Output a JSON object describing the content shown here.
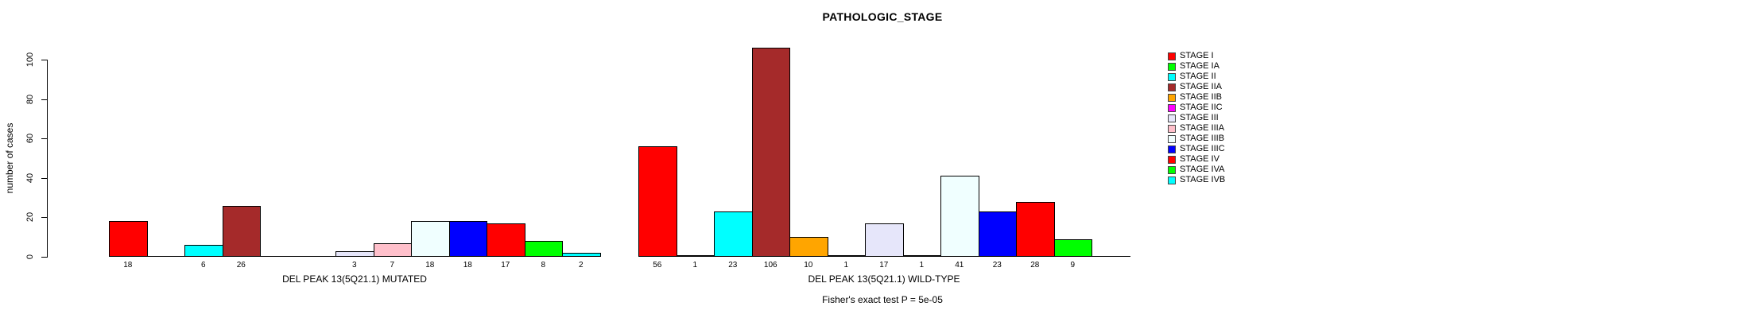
{
  "chart_data": {
    "type": "bar",
    "title": "PATHOLOGIC_STAGE",
    "ylabel": "number of cases",
    "xlabel": "",
    "ylim": [
      0,
      100
    ],
    "yticks": [
      0,
      20,
      40,
      60,
      80,
      100
    ],
    "grid": false,
    "legend_position": "right",
    "bar_border_color": "#000000",
    "categories": [
      "STAGE I",
      "STAGE IA",
      "STAGE II",
      "STAGE IIA",
      "STAGE IIB",
      "STAGE IIC",
      "STAGE III",
      "STAGE IIIA",
      "STAGE IIIB",
      "STAGE IIIC",
      "STAGE IV",
      "STAGE IVA",
      "STAGE IVB"
    ],
    "colors": [
      "#FF0000",
      "#00FF00",
      "#00FFFF",
      "#A52A2A",
      "#FFA500",
      "#FF00FF",
      "#E6E6FA",
      "#FFC0CB",
      "#F0FFFF",
      "#0000FF",
      "#FF0000",
      "#00FF00",
      "#00FFFF"
    ],
    "groups": [
      {
        "label": "DEL PEAK 13(5Q21.1) MUTATED",
        "values": [
          18,
          0,
          6,
          26,
          0,
          0,
          3,
          7,
          18,
          18,
          17,
          8,
          2
        ]
      },
      {
        "label": "DEL PEAK 13(5Q21.1) WILD-TYPE",
        "values": [
          56,
          1,
          23,
          106,
          10,
          1,
          17,
          1,
          41,
          23,
          28,
          9,
          0
        ]
      }
    ],
    "annotation": "Fisher's exact test P = 5e-05"
  },
  "legend": {
    "items": [
      {
        "label": "STAGE I",
        "color": "#FF0000"
      },
      {
        "label": "STAGE IA",
        "color": "#00FF00"
      },
      {
        "label": "STAGE II",
        "color": "#00FFFF"
      },
      {
        "label": "STAGE IIA",
        "color": "#A52A2A"
      },
      {
        "label": "STAGE IIB",
        "color": "#FFA500"
      },
      {
        "label": "STAGE IIC",
        "color": "#FF00FF"
      },
      {
        "label": "STAGE III",
        "color": "#E6E6FA"
      },
      {
        "label": "STAGE IIIA",
        "color": "#FFC0CB"
      },
      {
        "label": "STAGE IIIB",
        "color": "#F0FFFF"
      },
      {
        "label": "STAGE IIIC",
        "color": "#0000FF"
      },
      {
        "label": "STAGE IV",
        "color": "#FF0000"
      },
      {
        "label": "STAGE IVA",
        "color": "#00FF00"
      },
      {
        "label": "STAGE IVB",
        "color": "#00FFFF"
      }
    ]
  }
}
